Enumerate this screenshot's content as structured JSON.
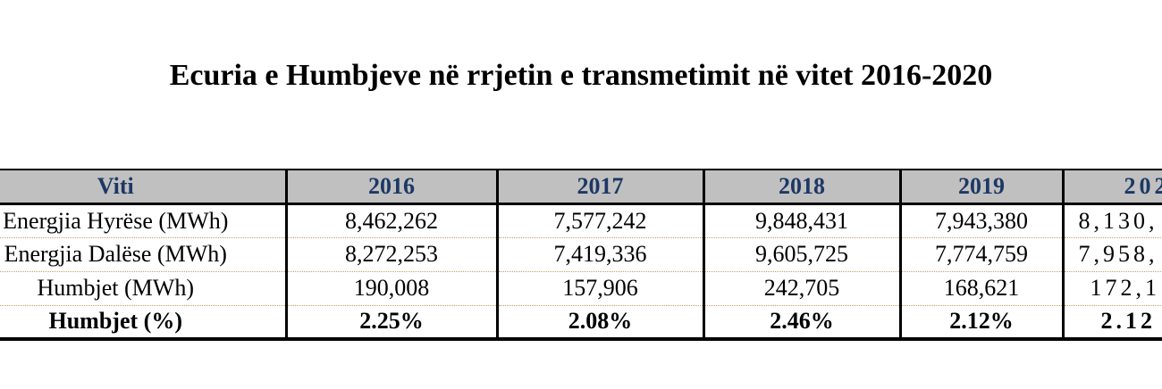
{
  "title": "Ecuria e Humbjeve në rrjetin e transmetimit në vitet 2016-2020",
  "table": {
    "columns": [
      "Viti",
      "2016",
      "2017",
      "2018",
      "2019",
      "202"
    ],
    "rows": [
      {
        "label": "Energjia Hyrëse (MWh)",
        "values": [
          "8,462,262",
          "7,577,242",
          "9,848,431",
          "7,943,380",
          "8,130,"
        ]
      },
      {
        "label": "Energjia Dalëse (MWh)",
        "values": [
          "8,272,253",
          "7,419,336",
          "9,605,725",
          "7,774,759",
          "7,958,"
        ]
      },
      {
        "label": "Humbjet (MWh)",
        "values": [
          "190,008",
          "157,906",
          "242,705",
          "168,621",
          "172,1"
        ]
      },
      {
        "label": "Humbjet (%)",
        "values": [
          "2.25%",
          "2.08%",
          "2.46%",
          "2.12%",
          "2.12"
        ]
      }
    ]
  },
  "colors": {
    "header_bg": "#c0c0c0",
    "header_text": "#1d3865",
    "border": "#000000",
    "dotted_divider": "#cc9966"
  }
}
